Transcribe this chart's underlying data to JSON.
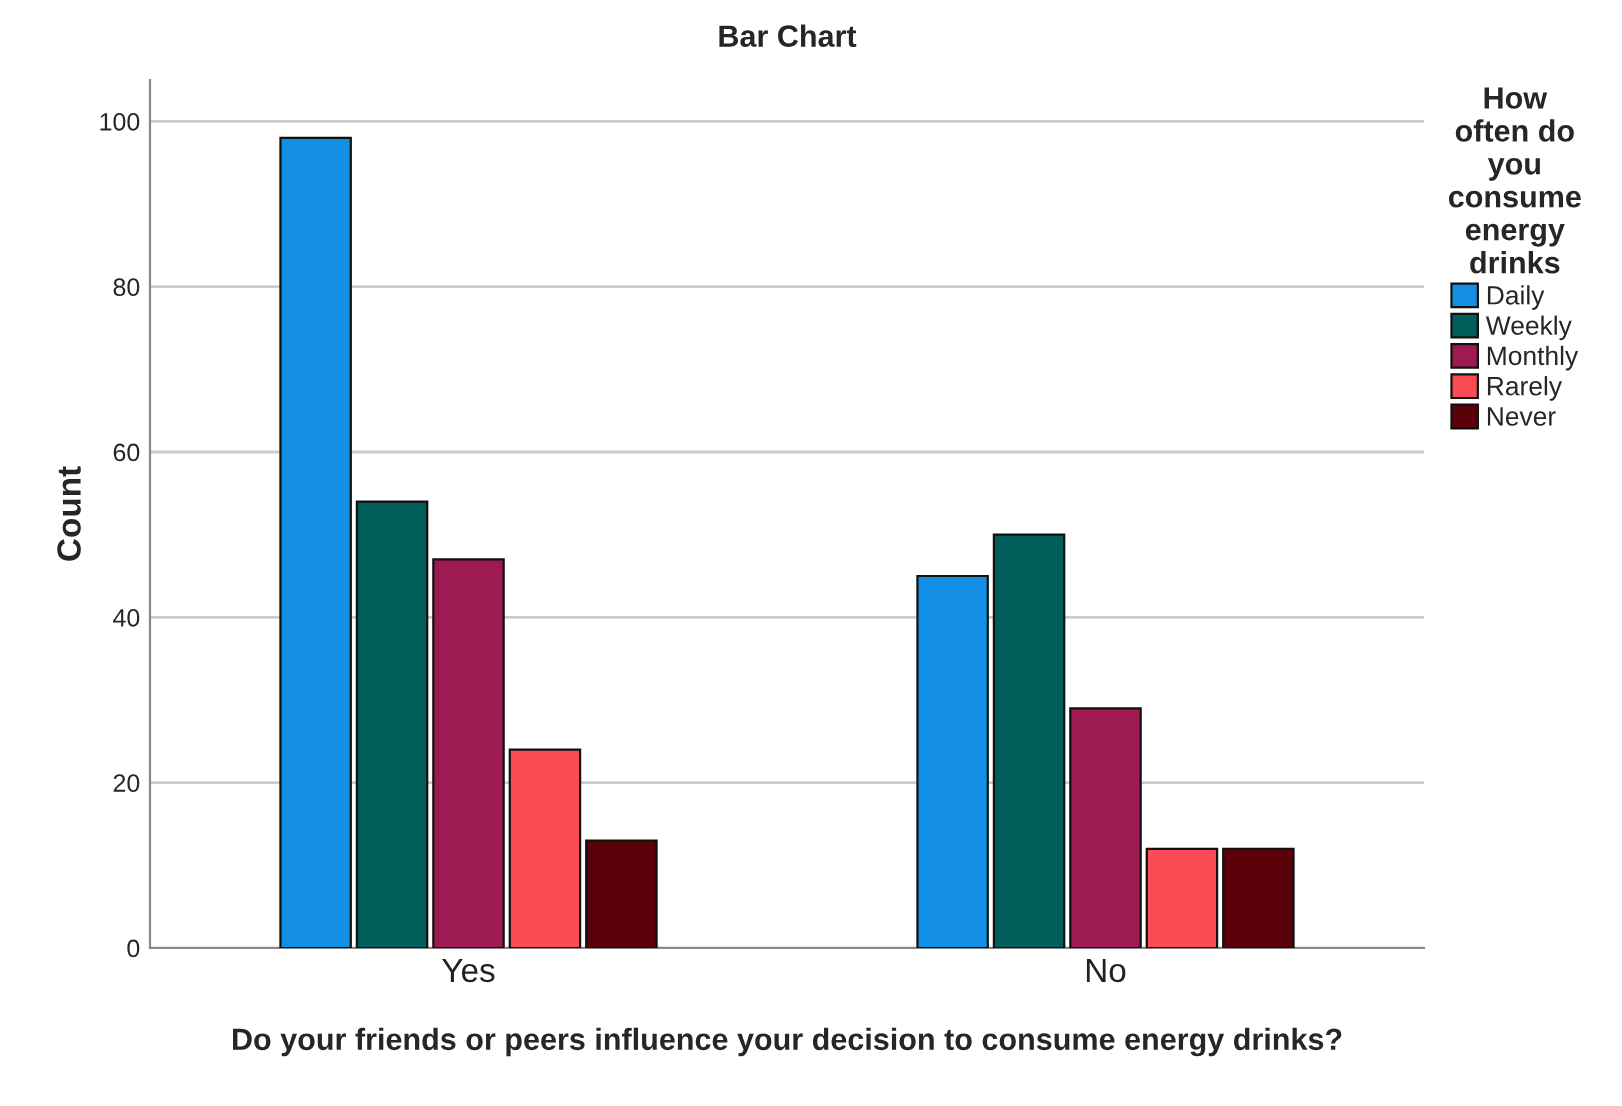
{
  "chart_data": {
    "type": "bar",
    "title": "Bar Chart",
    "xlabel": "Do your friends or peers influence your decision to consume energy drinks?",
    "ylabel": "Count",
    "legend_title": "How often do you consume energy drinks",
    "categories": [
      "Yes",
      "No"
    ],
    "series": [
      {
        "name": "Daily",
        "color": "#1390e6",
        "values": [
          98,
          45
        ]
      },
      {
        "name": "Weekly",
        "color": "#025e5a",
        "values": [
          54,
          50
        ]
      },
      {
        "name": "Monthly",
        "color": "#9e1a52",
        "values": [
          47,
          29
        ]
      },
      {
        "name": "Rarely",
        "color": "#f94c55",
        "values": [
          24,
          12
        ]
      },
      {
        "name": "Never",
        "color": "#5a0109",
        "values": [
          13,
          12
        ]
      }
    ],
    "ylim": [
      0,
      105
    ],
    "yticks": [
      0,
      20,
      40,
      60,
      80,
      100
    ],
    "grid": "y",
    "legend": "right"
  }
}
